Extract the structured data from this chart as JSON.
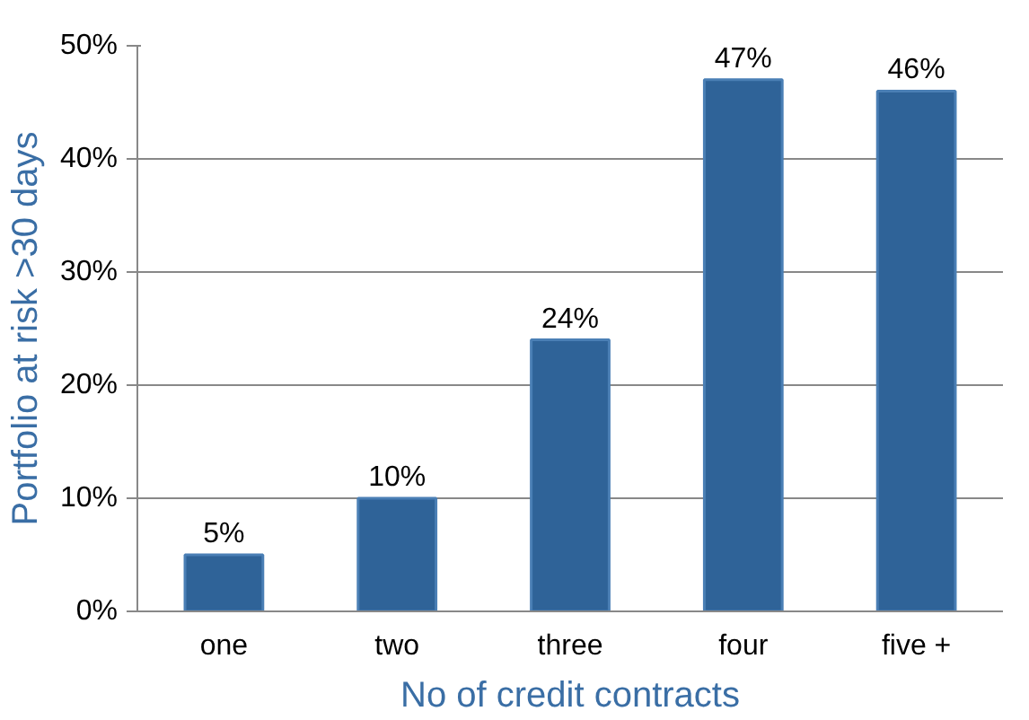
{
  "chart_data": {
    "type": "bar",
    "xlabel": "No of credit contracts",
    "ylabel": "Portfolio at risk >30 days",
    "categories": [
      "one",
      "two",
      "three",
      "four",
      "five +"
    ],
    "values": [
      5,
      10,
      24,
      47,
      46
    ],
    "value_labels": [
      "5%",
      "10%",
      "24%",
      "47%",
      "46%"
    ],
    "color": "#2f6398",
    "ylim": [
      0,
      50
    ],
    "yticks": [
      {
        "value": 0,
        "label": "0%"
      },
      {
        "value": 10,
        "label": "10%"
      },
      {
        "value": 20,
        "label": "20%"
      },
      {
        "value": 30,
        "label": "30%"
      },
      {
        "value": 40,
        "label": "40%"
      },
      {
        "value": 50,
        "label": "50%"
      }
    ],
    "grid": "y"
  }
}
